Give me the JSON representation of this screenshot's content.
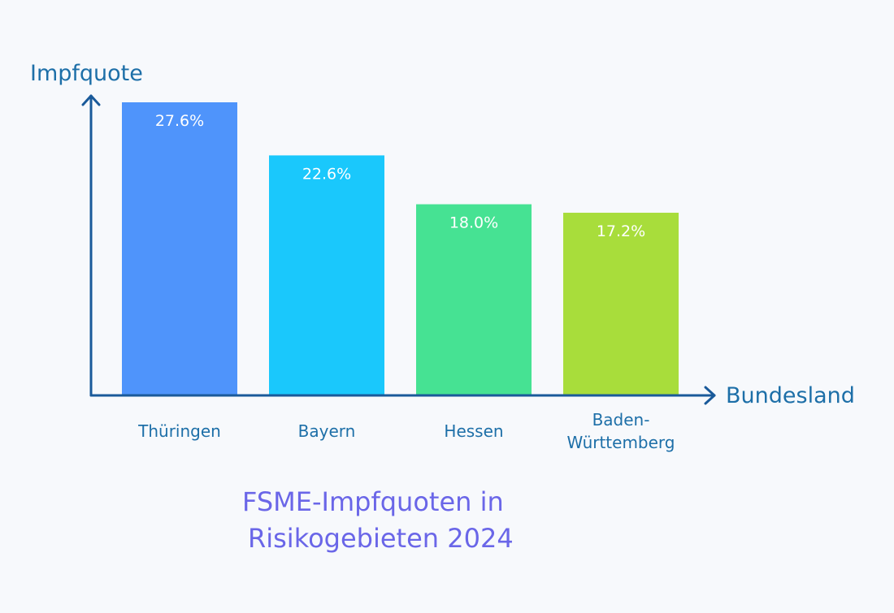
{
  "chart_data": {
    "type": "bar",
    "title": "FSME-Impfquoten in\nRisikogebieten 2024",
    "xlabel": "Bundesland",
    "ylabel": "Impfquote",
    "categories": [
      "Thüringen",
      "Bayern",
      "Hessen",
      "Baden-\nWürttemberg"
    ],
    "values": [
      27.6,
      22.6,
      18.0,
      17.2
    ],
    "value_labels": [
      "27.6%",
      "22.6%",
      "18.0%",
      "17.2%"
    ],
    "ylim": [
      0,
      30
    ],
    "grid": false,
    "legend": "none",
    "colors": [
      "#4f94fb",
      "#1ac8fc",
      "#46e293",
      "#a8dd3b"
    ],
    "axis_color": "#1a5a9a"
  }
}
